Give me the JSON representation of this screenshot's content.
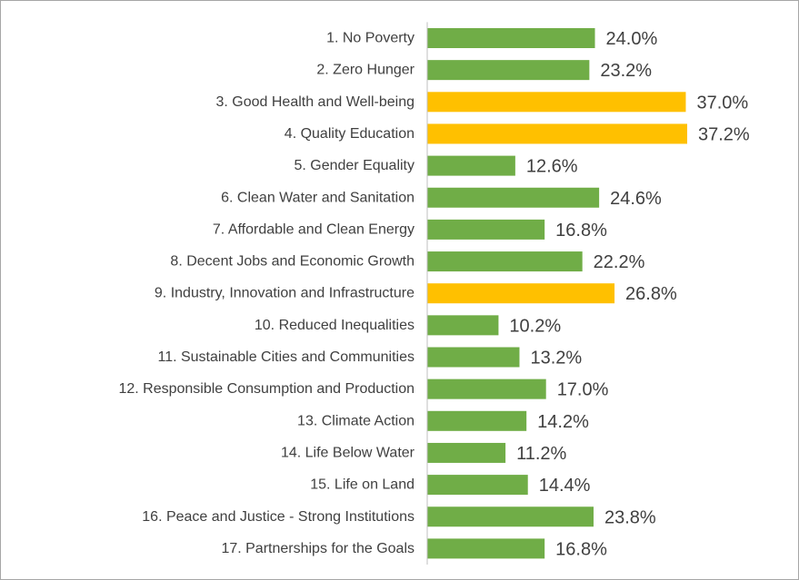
{
  "chart_data": {
    "type": "bar",
    "orientation": "horizontal",
    "title": "",
    "xlabel": "",
    "ylabel": "",
    "xlim": [
      0,
      37.2
    ],
    "grid": false,
    "legend": "none",
    "value_format": "percent_1dp",
    "colors": {
      "default": "#70ad47",
      "highlight": "#ffc000"
    },
    "categories": [
      "1. No Poverty",
      "2. Zero Hunger",
      "3. Good Health and Well-being",
      "4. Quality Education",
      "5. Gender Equality",
      "6. Clean Water and Sanitation",
      "7. Affordable and Clean Energy",
      "8. Decent Jobs and Economic Growth",
      "9. Industry, Innovation and Infrastructure",
      "10. Reduced Inequalities",
      "11. Sustainable Cities and Communities",
      "12. Responsible Consumption and Production",
      "13. Climate Action",
      "14. Life Below Water",
      "15. Life on Land",
      "16. Peace and Justice - Strong Institutions",
      "17. Partnerships for the Goals"
    ],
    "values": [
      24.0,
      23.2,
      37.0,
      37.2,
      12.6,
      24.6,
      16.8,
      22.2,
      26.8,
      10.2,
      13.2,
      17.0,
      14.2,
      11.2,
      14.4,
      23.8,
      16.8
    ],
    "data_labels": [
      "24.0%",
      "23.2%",
      "37.0%",
      "37.2%",
      "12.6%",
      "24.6%",
      "16.8%",
      "22.2%",
      "26.8%",
      "10.2%",
      "13.2%",
      "17.0%",
      "14.2%",
      "11.2%",
      "14.4%",
      "23.8%",
      "16.8%"
    ],
    "highlighted": [
      "3. Good Health and Well-being",
      "4. Quality Education",
      "9. Industry, Innovation and Infrastructure"
    ]
  }
}
